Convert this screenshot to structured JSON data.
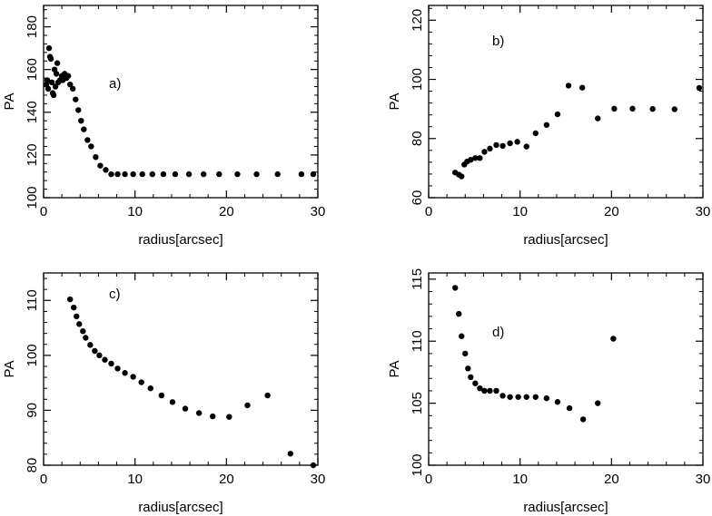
{
  "chart_data": [
    {
      "type": "scatter",
      "panel_label": "a)",
      "xlabel": "radius[arcsec]",
      "ylabel": "PA",
      "xlim": [
        0,
        30
      ],
      "ylim": [
        100,
        190
      ],
      "xticks": [
        0,
        10,
        20,
        30
      ],
      "yticks": [
        100,
        120,
        140,
        160,
        180
      ],
      "grid": false,
      "points": [
        [
          0.3,
          153
        ],
        [
          0.4,
          155
        ],
        [
          0.5,
          151
        ],
        [
          0.6,
          170
        ],
        [
          0.7,
          166
        ],
        [
          0.8,
          165
        ],
        [
          0.9,
          154
        ],
        [
          1.0,
          149
        ],
        [
          1.1,
          148
        ],
        [
          1.2,
          160
        ],
        [
          1.3,
          152
        ],
        [
          1.4,
          158
        ],
        [
          1.5,
          163
        ],
        [
          1.6,
          154
        ],
        [
          1.8,
          155
        ],
        [
          2.0,
          157
        ],
        [
          2.1,
          155
        ],
        [
          2.3,
          158
        ],
        [
          2.5,
          156
        ],
        [
          2.7,
          157
        ],
        [
          2.9,
          153
        ],
        [
          3.2,
          151
        ],
        [
          3.5,
          146
        ],
        [
          3.8,
          141
        ],
        [
          4.1,
          136
        ],
        [
          4.4,
          132
        ],
        [
          4.8,
          127
        ],
        [
          5.2,
          124
        ],
        [
          5.7,
          119
        ],
        [
          6.2,
          115
        ],
        [
          6.8,
          113
        ],
        [
          7.4,
          111
        ],
        [
          8.1,
          111
        ],
        [
          8.9,
          111
        ],
        [
          9.8,
          111
        ],
        [
          10.8,
          111
        ],
        [
          11.9,
          111
        ],
        [
          13.1,
          111
        ],
        [
          14.4,
          111
        ],
        [
          15.9,
          111
        ],
        [
          17.5,
          111
        ],
        [
          19.2,
          111
        ],
        [
          21.2,
          111
        ],
        [
          23.3,
          111
        ],
        [
          25.6,
          111
        ],
        [
          28.2,
          111
        ],
        [
          29.5,
          111
        ]
      ]
    },
    {
      "type": "scatter",
      "panel_label": "b)",
      "xlabel": "radius[arcsec]",
      "ylabel": "PA",
      "xlim": [
        0,
        30
      ],
      "ylim": [
        60,
        125
      ],
      "xticks": [
        0,
        10,
        20,
        30
      ],
      "yticks": [
        60,
        80,
        100,
        120
      ],
      "grid": false,
      "points": [
        [
          2.9,
          68.5
        ],
        [
          3.3,
          67.8
        ],
        [
          3.6,
          67.2
        ],
        [
          3.9,
          71.2
        ],
        [
          4.2,
          72.2
        ],
        [
          4.6,
          72.8
        ],
        [
          5.1,
          73.4
        ],
        [
          5.6,
          73.4
        ],
        [
          6.1,
          75.5
        ],
        [
          6.7,
          76.6
        ],
        [
          7.4,
          77.8
        ],
        [
          8.1,
          77.5
        ],
        [
          8.9,
          78.4
        ],
        [
          9.7,
          78.9
        ],
        [
          10.7,
          77.3
        ],
        [
          11.7,
          81.8
        ],
        [
          12.9,
          84.6
        ],
        [
          14.1,
          88.2
        ],
        [
          15.3,
          97.9
        ],
        [
          16.8,
          97.2
        ],
        [
          18.5,
          86.8
        ],
        [
          20.3,
          90.1
        ],
        [
          22.3,
          90.1
        ],
        [
          24.5,
          90.0
        ],
        [
          26.9,
          89.9
        ],
        [
          29.6,
          97.1
        ]
      ]
    },
    {
      "type": "scatter",
      "panel_label": "c)",
      "xlabel": "radius[arcsec]",
      "ylabel": "PA",
      "xlim": [
        0,
        30
      ],
      "ylim": [
        80,
        115
      ],
      "xticks": [
        0,
        10,
        20,
        30
      ],
      "yticks": [
        80,
        90,
        100,
        110
      ],
      "grid": false,
      "points": [
        [
          2.9,
          110.2
        ],
        [
          3.3,
          108.7
        ],
        [
          3.6,
          107.1
        ],
        [
          3.9,
          105.7
        ],
        [
          4.3,
          104.4
        ],
        [
          4.6,
          103.2
        ],
        [
          5.1,
          101.9
        ],
        [
          5.6,
          100.8
        ],
        [
          6.1,
          100.0
        ],
        [
          6.7,
          99.2
        ],
        [
          7.4,
          98.5
        ],
        [
          8.1,
          97.6
        ],
        [
          8.9,
          96.8
        ],
        [
          9.8,
          96.1
        ],
        [
          10.7,
          95.1
        ],
        [
          11.7,
          94.0
        ],
        [
          12.9,
          92.7
        ],
        [
          14.1,
          91.5
        ],
        [
          15.5,
          90.3
        ],
        [
          17.0,
          89.5
        ],
        [
          18.5,
          88.9
        ],
        [
          20.3,
          88.8
        ],
        [
          22.3,
          90.9
        ],
        [
          24.5,
          92.7
        ],
        [
          27.0,
          82.1
        ],
        [
          29.5,
          79.8
        ]
      ]
    },
    {
      "type": "scatter",
      "panel_label": "d)",
      "xlabel": "radius[arcsec]",
      "ylabel": "PA",
      "xlim": [
        0,
        30
      ],
      "ylim": [
        100,
        115.5
      ],
      "xticks": [
        0,
        10,
        20,
        30
      ],
      "yticks": [
        100,
        105,
        110,
        115
      ],
      "grid": false,
      "points": [
        [
          2.9,
          114.3
        ],
        [
          3.3,
          112.2
        ],
        [
          3.6,
          110.4
        ],
        [
          4.0,
          109.0
        ],
        [
          4.3,
          107.8
        ],
        [
          4.6,
          107.1
        ],
        [
          5.1,
          106.6
        ],
        [
          5.6,
          106.2
        ],
        [
          6.1,
          106.0
        ],
        [
          6.7,
          106.0
        ],
        [
          7.4,
          106.0
        ],
        [
          8.1,
          105.6
        ],
        [
          8.9,
          105.5
        ],
        [
          9.8,
          105.5
        ],
        [
          10.7,
          105.5
        ],
        [
          11.7,
          105.5
        ],
        [
          12.9,
          105.4
        ],
        [
          14.1,
          105.1
        ],
        [
          15.4,
          104.6
        ],
        [
          16.9,
          103.7
        ],
        [
          18.5,
          105.0
        ],
        [
          20.2,
          110.2
        ]
      ]
    }
  ]
}
